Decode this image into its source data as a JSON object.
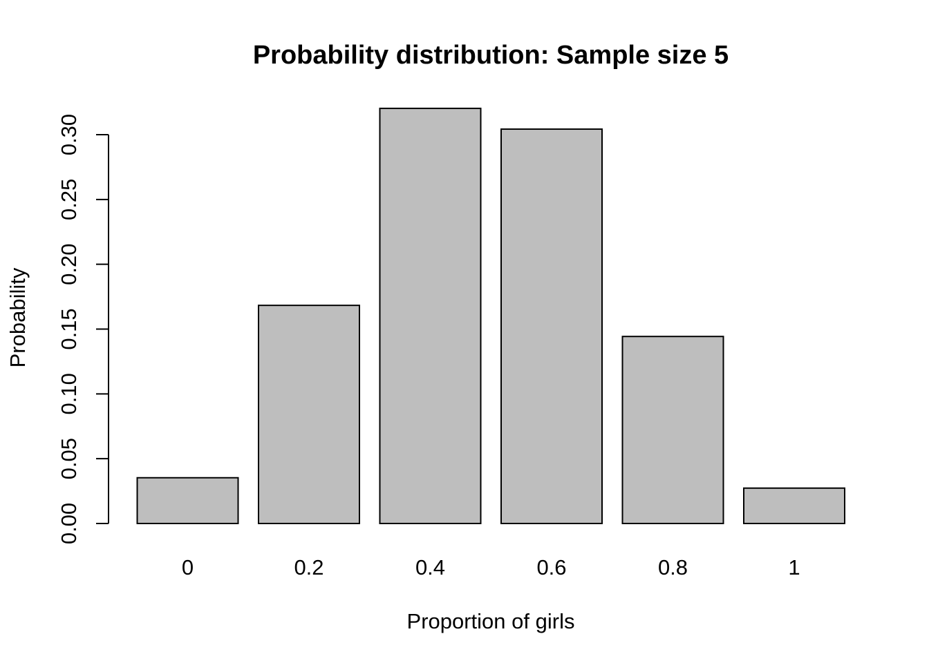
{
  "chart_data": {
    "type": "bar",
    "title": "Probability distribution: Sample size 5",
    "xlabel": "Proportion of girls",
    "ylabel": "Probability",
    "categories": [
      "0",
      "0.2",
      "0.4",
      "0.6",
      "0.8",
      "1"
    ],
    "values": [
      0.0353,
      0.1683,
      0.3203,
      0.3043,
      0.1443,
      0.0273
    ],
    "ylim": [
      0,
      0.32
    ],
    "yticks": [
      "0.00",
      "0.05",
      "0.10",
      "0.15",
      "0.20",
      "0.25",
      "0.30"
    ],
    "ytick_values": [
      0,
      0.05,
      0.1,
      0.15,
      0.2,
      0.25,
      0.3
    ],
    "bar_color": "#bebebe",
    "grid": false,
    "legend": "none"
  }
}
